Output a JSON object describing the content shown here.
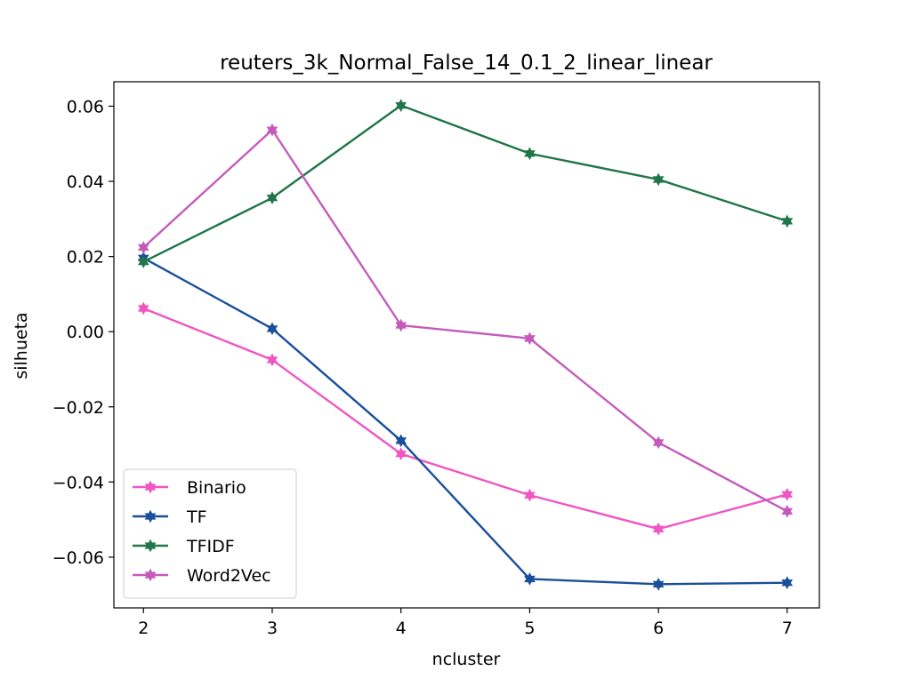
{
  "chart_data": {
    "type": "line",
    "title": "reuters_3k_Normal_False_14_0.1_2_linear_linear",
    "xlabel": "ncluster",
    "ylabel": "silhueta",
    "x": [
      2,
      3,
      4,
      5,
      6,
      7
    ],
    "x_ticks": [
      "2",
      "3",
      "4",
      "5",
      "6",
      "7"
    ],
    "y_ticks": [
      "0.06",
      "0.04",
      "0.02",
      "0.00",
      "−0.02",
      "−0.04",
      "−0.06"
    ],
    "y_tick_values": [
      0.06,
      0.04,
      0.02,
      0.0,
      -0.02,
      -0.04,
      -0.06
    ],
    "xlim": [
      1.77,
      7.25
    ],
    "ylim": [
      -0.0735,
      0.0665
    ],
    "grid": false,
    "legend_position": "lower-left",
    "marker": "star",
    "series": [
      {
        "name": "Binario",
        "color": "#f055c3",
        "values": [
          0.0062,
          -0.0075,
          -0.0325,
          -0.0435,
          -0.0525,
          -0.0433
        ]
      },
      {
        "name": "TF",
        "color": "#1a4f9c",
        "values": [
          0.0196,
          0.0008,
          -0.029,
          -0.0658,
          -0.0672,
          -0.0668
        ]
      },
      {
        "name": "TFIDF",
        "color": "#21754a",
        "values": [
          0.0186,
          0.0356,
          0.0602,
          0.0474,
          0.0405,
          0.0294
        ]
      },
      {
        "name": "Word2Vec",
        "color": "#c45bbc",
        "values": [
          0.0224,
          0.0537,
          0.0017,
          -0.0018,
          -0.0295,
          -0.0478
        ]
      }
    ]
  }
}
